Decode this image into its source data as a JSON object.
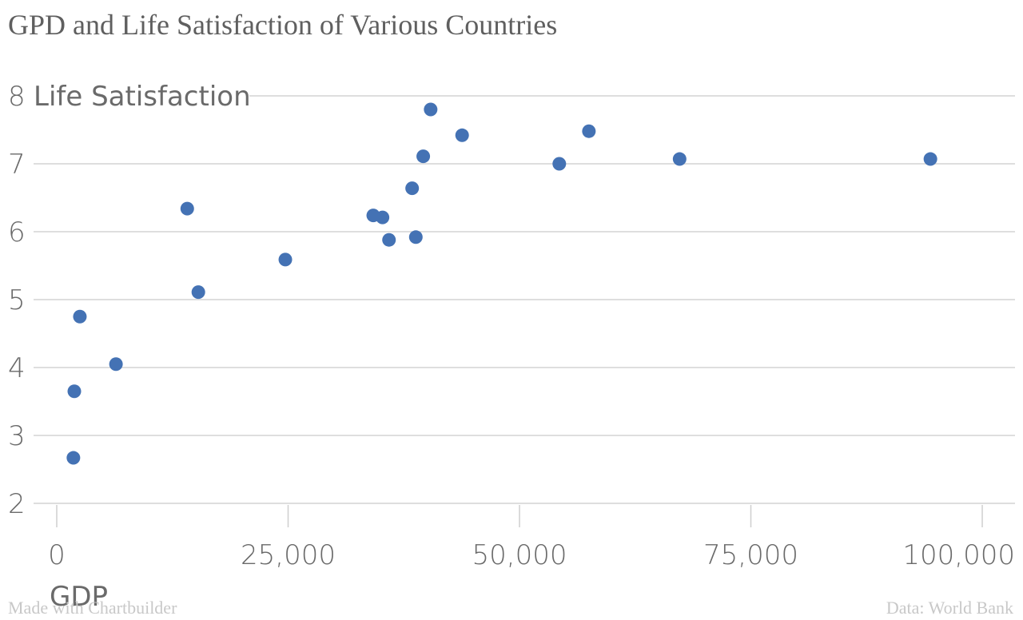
{
  "chart_data": {
    "type": "scatter",
    "title": "GPD and Life Satisfaction of Various Countries",
    "xlabel": "GDP",
    "ylabel": "Life Satisfaction",
    "xlim": [
      0,
      100000
    ],
    "ylim": [
      2,
      8
    ],
    "x_ticks": [
      0,
      25000,
      50000,
      75000,
      100000
    ],
    "x_tick_labels": [
      "0",
      "25,000",
      "50,000",
      "75,000",
      "100,000"
    ],
    "y_ticks": [
      2,
      3,
      4,
      5,
      6,
      7,
      8
    ],
    "y_tick_labels": [
      "2",
      "3",
      "4",
      "5",
      "6",
      "7",
      "8"
    ],
    "grid": true,
    "points": [
      {
        "x": 1800,
        "y": 2.67
      },
      {
        "x": 1900,
        "y": 3.65
      },
      {
        "x": 2500,
        "y": 4.75
      },
      {
        "x": 6400,
        "y": 4.05
      },
      {
        "x": 14100,
        "y": 6.34
      },
      {
        "x": 15300,
        "y": 5.11
      },
      {
        "x": 24700,
        "y": 5.59
      },
      {
        "x": 34200,
        "y": 6.24
      },
      {
        "x": 35200,
        "y": 6.21
      },
      {
        "x": 35900,
        "y": 5.88
      },
      {
        "x": 38400,
        "y": 6.64
      },
      {
        "x": 38800,
        "y": 5.92
      },
      {
        "x": 39600,
        "y": 7.11
      },
      {
        "x": 40400,
        "y": 7.8
      },
      {
        "x": 43800,
        "y": 7.42
      },
      {
        "x": 54300,
        "y": 7.0
      },
      {
        "x": 57500,
        "y": 7.48
      },
      {
        "x": 67300,
        "y": 7.07
      },
      {
        "x": 94400,
        "y": 7.07
      }
    ]
  },
  "footer": {
    "left": "Made with Chartbuilder",
    "right": "Data: World Bank"
  }
}
